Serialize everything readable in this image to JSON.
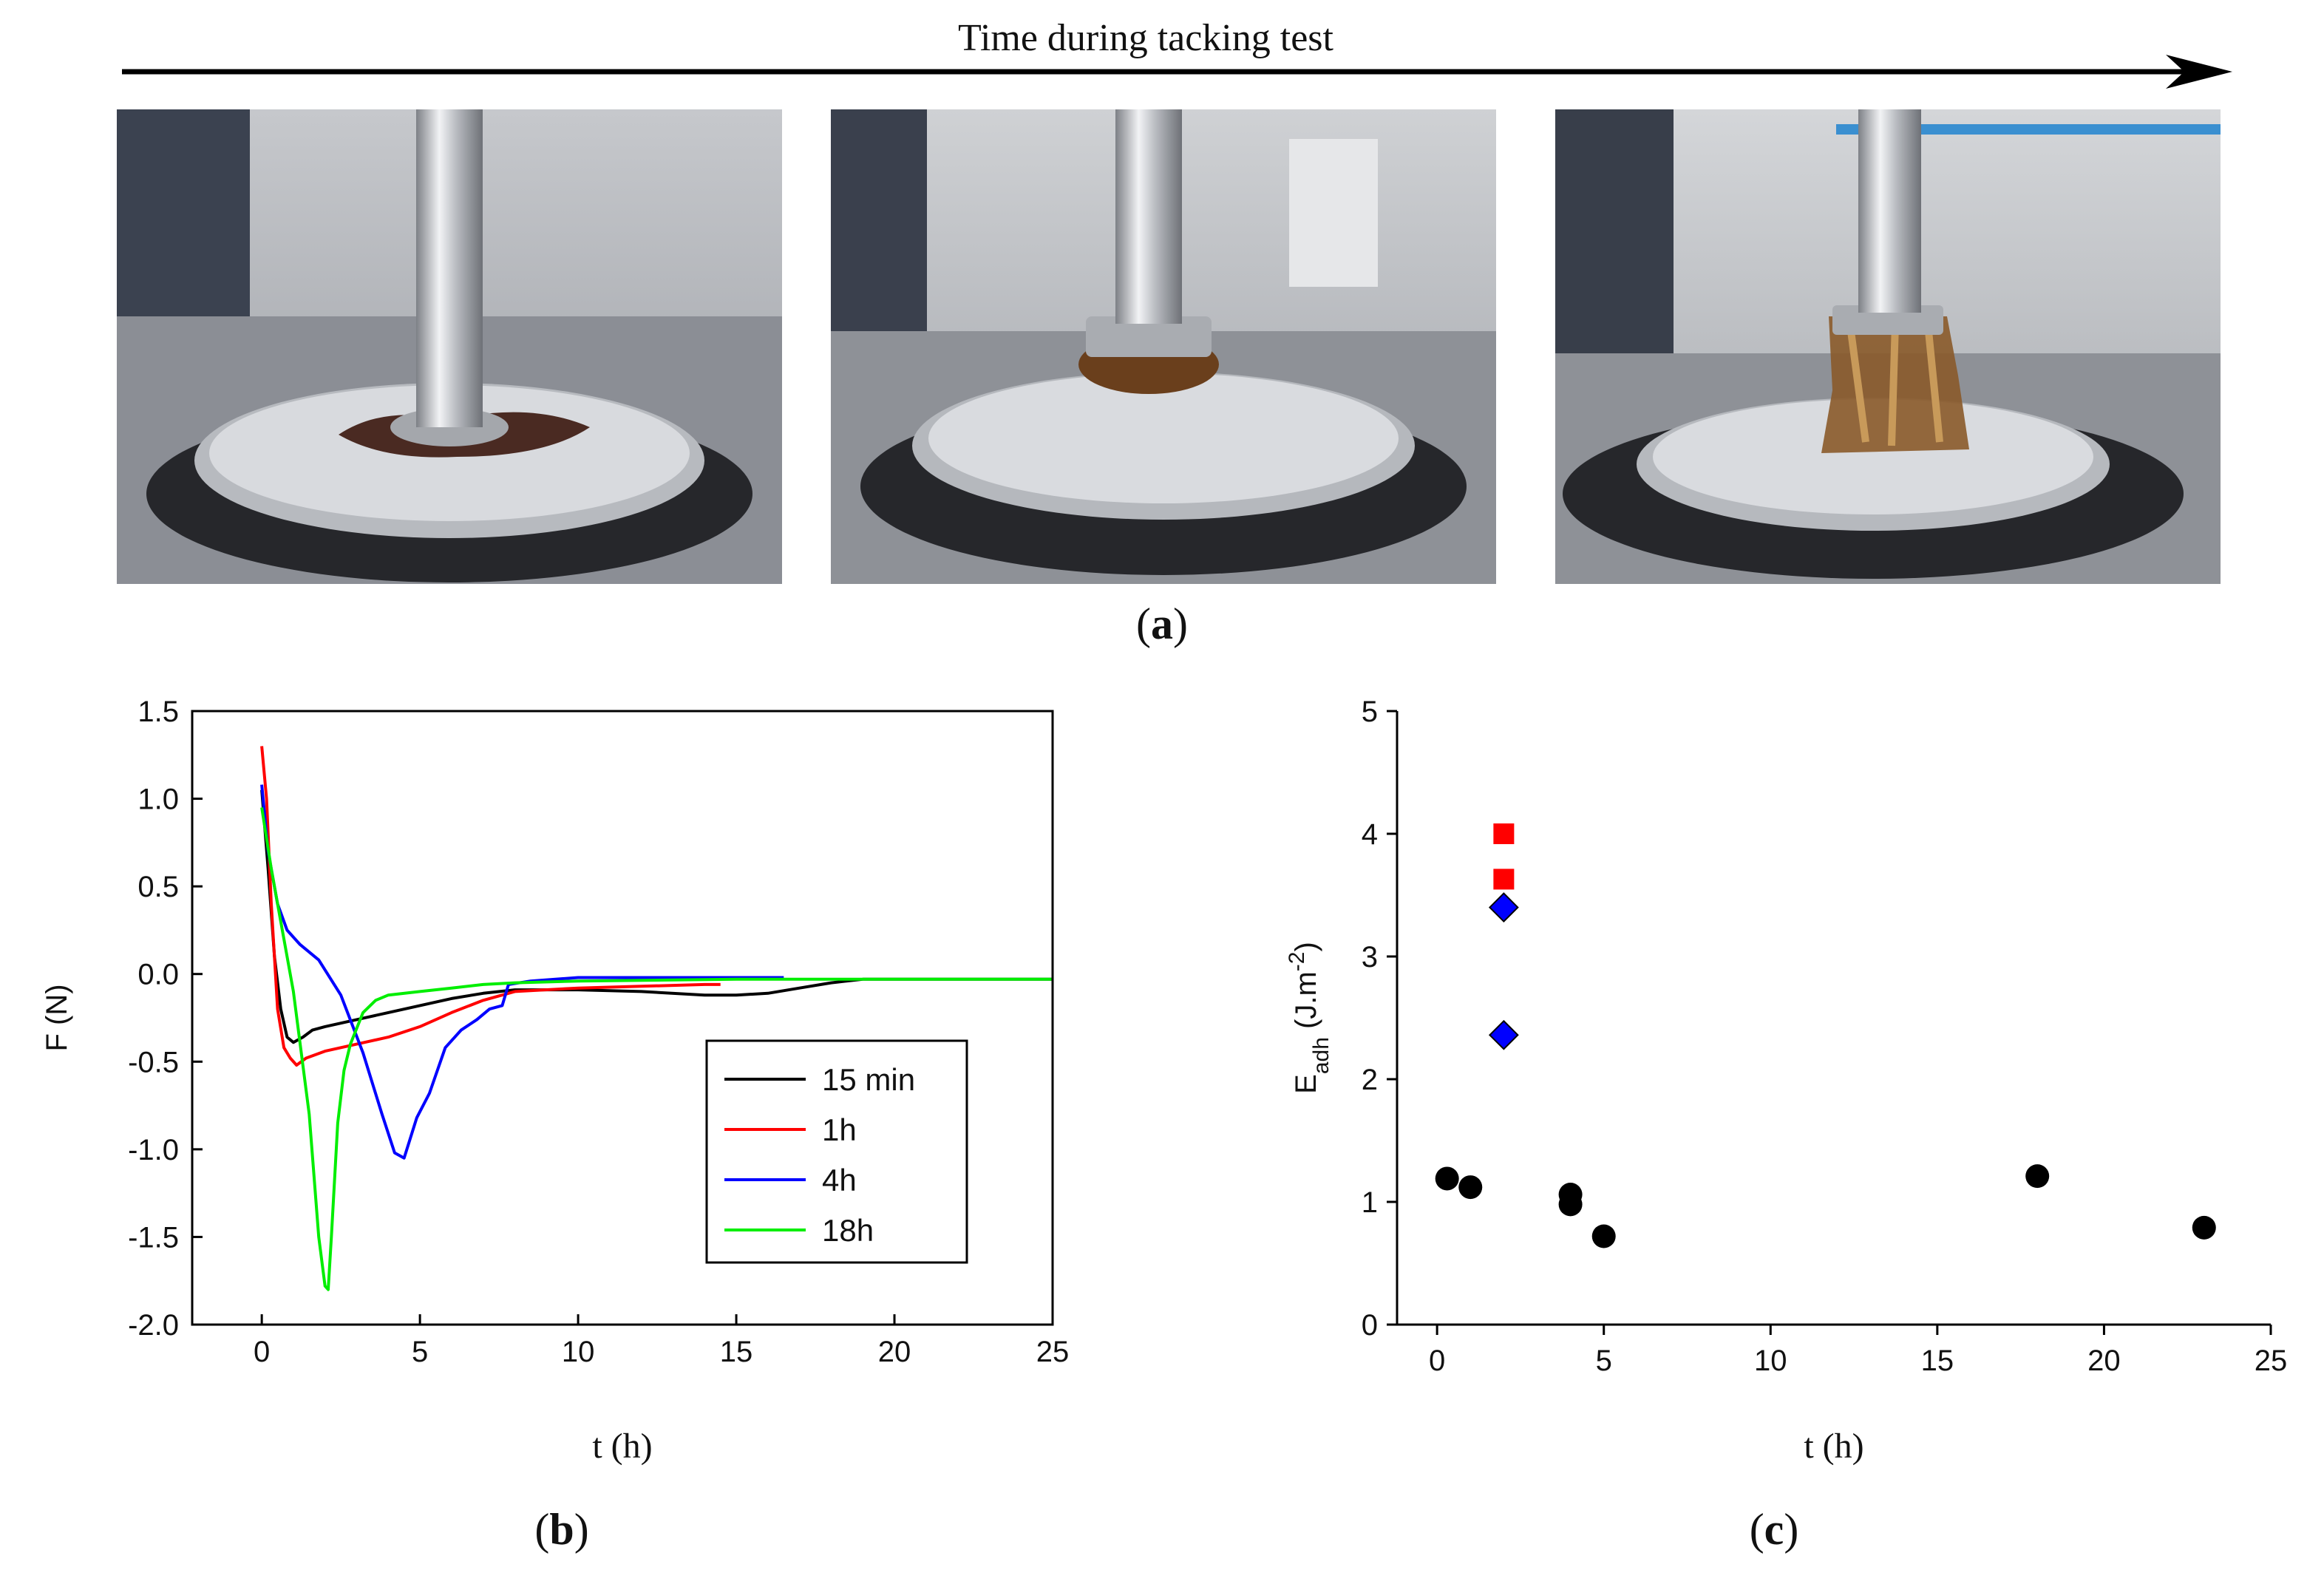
{
  "figure": {
    "timeline_label": "Time during tacking test",
    "photos": [
      {
        "stage": "early",
        "icon": "probe-photo-spread-icon"
      },
      {
        "stage": "middle",
        "icon": "probe-photo-neck-icon"
      },
      {
        "stage": "late",
        "icon": "probe-photo-fibrils-icon"
      }
    ],
    "panel_labels": {
      "a": {
        "open": "(",
        "letter": "a",
        "close": ")"
      },
      "b": {
        "open": "(",
        "letter": "b",
        "close": ")"
      },
      "c": {
        "open": "(",
        "letter": "c",
        "close": ")"
      }
    }
  },
  "chart_data": [
    {
      "id": "b",
      "type": "line",
      "xlabel": "t (h)",
      "ylabel": "F (N)",
      "xlim": [
        -2.2,
        25
      ],
      "ylim": [
        -2.0,
        1.5
      ],
      "xticks": [
        0,
        5,
        10,
        15,
        20,
        25
      ],
      "yticks": [
        1.5,
        1.0,
        0.5,
        0.0,
        -0.5,
        -1.0,
        -1.5,
        -2.0
      ],
      "ytick_labels": [
        "1.5",
        "1.0",
        "0.5",
        "0.0",
        "-0.5",
        "-1.0",
        "-1.5",
        "-2.0"
      ],
      "legend_position": "lower-right",
      "series": [
        {
          "name": "15 min",
          "color": "#000000",
          "x": [
            0,
            0.2,
            0.4,
            0.6,
            0.8,
            1.0,
            1.3,
            1.6,
            2,
            3,
            4,
            5,
            6,
            7,
            8,
            10,
            12,
            14,
            15,
            16,
            17,
            18,
            19,
            20,
            22,
            25
          ],
          "y": [
            1.05,
            0.6,
            0.1,
            -0.2,
            -0.36,
            -0.39,
            -0.36,
            -0.32,
            -0.3,
            -0.26,
            -0.22,
            -0.18,
            -0.14,
            -0.11,
            -0.09,
            -0.09,
            -0.1,
            -0.12,
            -0.12,
            -0.11,
            -0.08,
            -0.05,
            -0.03,
            -0.03,
            -0.03,
            -0.03
          ]
        },
        {
          "name": "1h",
          "color": "#ff0000",
          "x": [
            0,
            0.15,
            0.3,
            0.5,
            0.7,
            0.9,
            1.1,
            1.4,
            2,
            3,
            4,
            5,
            6,
            7,
            8,
            10,
            12,
            14,
            14.5
          ],
          "y": [
            1.3,
            1.0,
            0.4,
            -0.2,
            -0.42,
            -0.48,
            -0.52,
            -0.48,
            -0.44,
            -0.4,
            -0.36,
            -0.3,
            -0.22,
            -0.15,
            -0.1,
            -0.08,
            -0.07,
            -0.06,
            -0.06
          ]
        },
        {
          "name": "4h",
          "color": "#0000ff",
          "x": [
            0,
            0.2,
            0.5,
            0.8,
            1.2,
            1.8,
            2.5,
            3.2,
            3.8,
            4.2,
            4.5,
            4.9,
            5.3,
            5.8,
            6.3,
            6.8,
            7.2,
            7.6,
            7.8,
            8.5,
            10,
            12,
            14,
            16,
            16.5
          ],
          "y": [
            1.08,
            0.7,
            0.4,
            0.25,
            0.17,
            0.08,
            -0.12,
            -0.45,
            -0.8,
            -1.02,
            -1.05,
            -0.82,
            -0.68,
            -0.42,
            -0.32,
            -0.26,
            -0.2,
            -0.18,
            -0.06,
            -0.04,
            -0.02,
            -0.02,
            -0.02,
            -0.02,
            -0.02
          ]
        },
        {
          "name": "18h",
          "color": "#00ee00",
          "x": [
            0,
            0.3,
            0.6,
            1.0,
            1.5,
            1.8,
            2.0,
            2.1,
            2.2,
            2.4,
            2.6,
            2.8,
            3.2,
            3.6,
            4,
            5,
            6,
            7,
            8,
            10,
            15,
            20,
            25
          ],
          "y": [
            0.95,
            0.6,
            0.3,
            -0.1,
            -0.8,
            -1.5,
            -1.78,
            -1.8,
            -1.5,
            -0.85,
            -0.55,
            -0.4,
            -0.22,
            -0.15,
            -0.12,
            -0.1,
            -0.08,
            -0.06,
            -0.05,
            -0.04,
            -0.03,
            -0.03,
            -0.03
          ]
        }
      ]
    },
    {
      "id": "c",
      "type": "scatter",
      "xlabel": "t (h)",
      "ylabel": {
        "main": "E",
        "sub": "adh",
        "rest": " (J.m",
        "sup": "-2",
        "end": ")"
      },
      "xlim": [
        -1.2,
        25
      ],
      "ylim": [
        0,
        5
      ],
      "xticks": [
        0,
        5,
        10,
        15,
        20,
        25
      ],
      "yticks": [
        0,
        1,
        2,
        3,
        4,
        5
      ],
      "series": [
        {
          "marker": "circle",
          "color": "#000000",
          "points": [
            [
              0.3,
              1.19
            ],
            [
              1.0,
              1.12
            ],
            [
              4.0,
              1.06
            ],
            [
              4.0,
              0.98
            ],
            [
              5.0,
              0.72
            ],
            [
              18.0,
              1.21
            ],
            [
              23.0,
              0.79
            ]
          ]
        },
        {
          "marker": "square",
          "color": "#ff0000",
          "points": [
            [
              2.0,
              4.0
            ],
            [
              2.0,
              3.63
            ]
          ]
        },
        {
          "marker": "diamond",
          "color": "#0000ff",
          "points": [
            [
              2.0,
              3.4
            ],
            [
              2.0,
              2.36
            ]
          ]
        }
      ]
    }
  ]
}
